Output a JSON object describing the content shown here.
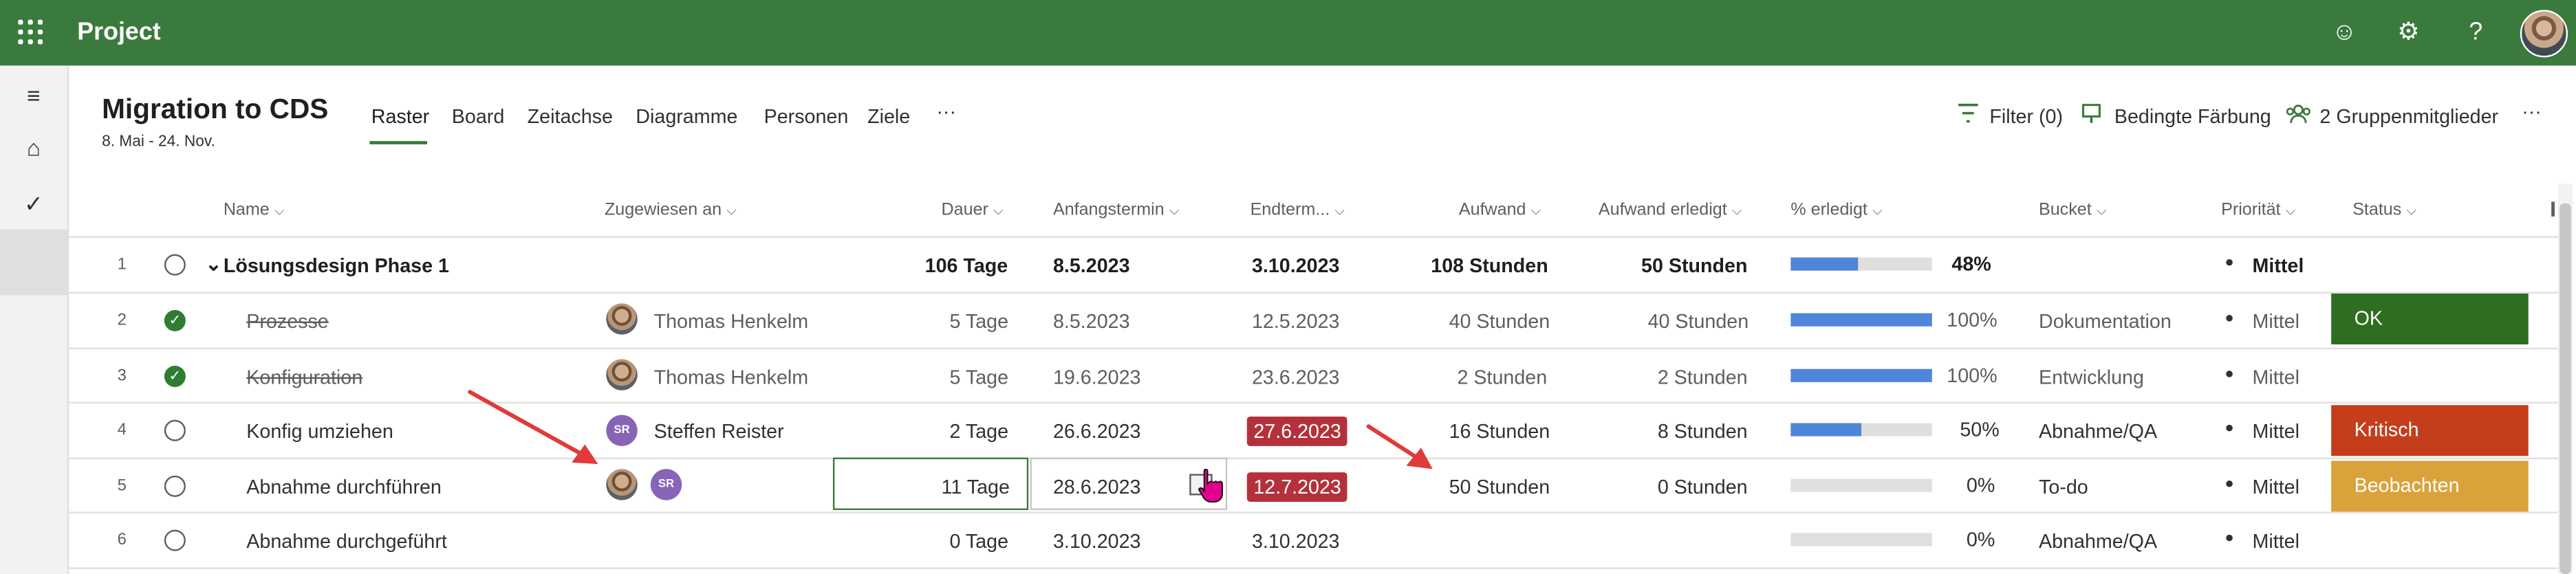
{
  "app": {
    "title": "Project"
  },
  "project": {
    "title": "Migration to CDS",
    "dates": "8. Mai - 24. Nov."
  },
  "tabs": [
    "Raster",
    "Board",
    "Zeitachse",
    "Diagramme",
    "Personen",
    "Ziele"
  ],
  "tabs_more": "···",
  "toolbar": {
    "filter": "Filter (0)",
    "conditional": "Bedingte Färbung",
    "members": "2 Gruppenmitglieder",
    "more": "···"
  },
  "columns": [
    "Name",
    "Zugewiesen an",
    "Dauer",
    "Anfangstermin",
    "Endterm...",
    "Aufwand",
    "Aufwand erledigt",
    "% erledigt",
    "Bucket",
    "Priorität",
    "Status"
  ],
  "rows": [
    {
      "num": "1",
      "name": "Lösungsdesign Phase 1",
      "assigned": "",
      "duration": "106 Tage",
      "start": "8.5.2023",
      "end": "3.10.2023",
      "effort": "108 Stunden",
      "effort_done": "50 Stunden",
      "pct": "48%",
      "pct_value": 48,
      "bucket": "",
      "priority": "Mittel",
      "status": ""
    },
    {
      "num": "2",
      "name": "Prozesse",
      "assigned": "Thomas Henkelma",
      "duration": "5 Tage",
      "start": "8.5.2023",
      "end": "12.5.2023",
      "effort": "40 Stunden",
      "effort_done": "40 Stunden",
      "pct": "100%",
      "pct_value": 100,
      "bucket": "Dokumentation",
      "priority": "Mittel",
      "status": "OK"
    },
    {
      "num": "3",
      "name": "Konfiguration",
      "assigned": "Thomas Henkelma",
      "duration": "5 Tage",
      "start": "19.6.2023",
      "end": "23.6.2023",
      "effort": "2 Stunden",
      "effort_done": "2 Stunden",
      "pct": "100%",
      "pct_value": 100,
      "bucket": "Entwicklung",
      "priority": "Mittel",
      "status": ""
    },
    {
      "num": "4",
      "name": "Konfig umziehen",
      "assigned": "Steffen Reister",
      "duration": "2 Tage",
      "start": "26.6.2023",
      "end": "27.6.2023",
      "effort": "16 Stunden",
      "effort_done": "8 Stunden",
      "pct": "50%",
      "pct_value": 50,
      "bucket": "Abnahme/QA",
      "priority": "Mittel",
      "status": "Kritisch"
    },
    {
      "num": "5",
      "name": "Abnahme durchführen",
      "assigned": "",
      "duration": "11 Tage",
      "start": "28.6.2023",
      "end": "12.7.2023",
      "effort": "50 Stunden",
      "effort_done": "0 Stunden",
      "pct": "0%",
      "pct_value": 0,
      "bucket": "To-do",
      "priority": "Mittel",
      "status": "Beobachten"
    },
    {
      "num": "6",
      "name": "Abnahme durchgeführt",
      "assigned": "",
      "duration": "0 Tage",
      "start": "3.10.2023",
      "end": "3.10.2023",
      "effort": "",
      "effort_done": "",
      "pct": "0%",
      "pct_value": 0,
      "bucket": "Abnahme/QA",
      "priority": "Mittel",
      "status": ""
    }
  ],
  "avatars": {
    "sr": "SR"
  },
  "colors": {
    "header_green": "#3b7a3d",
    "ok": "#2e6e22",
    "kritisch": "#c43e1c",
    "beobachten": "#dba23b",
    "date_red": "#b4313b",
    "progress": "#4f86d9",
    "arrow": "#e03a3a"
  },
  "icons": [
    "waffle-icon",
    "smiley-icon",
    "gear-icon",
    "help-icon",
    "hamburger-icon",
    "home-icon",
    "checkmark-icon",
    "filter-icon",
    "paint-icon",
    "group-icon",
    "calendar-icon",
    "cursor-hand-icon",
    "arrow-annotation"
  ]
}
